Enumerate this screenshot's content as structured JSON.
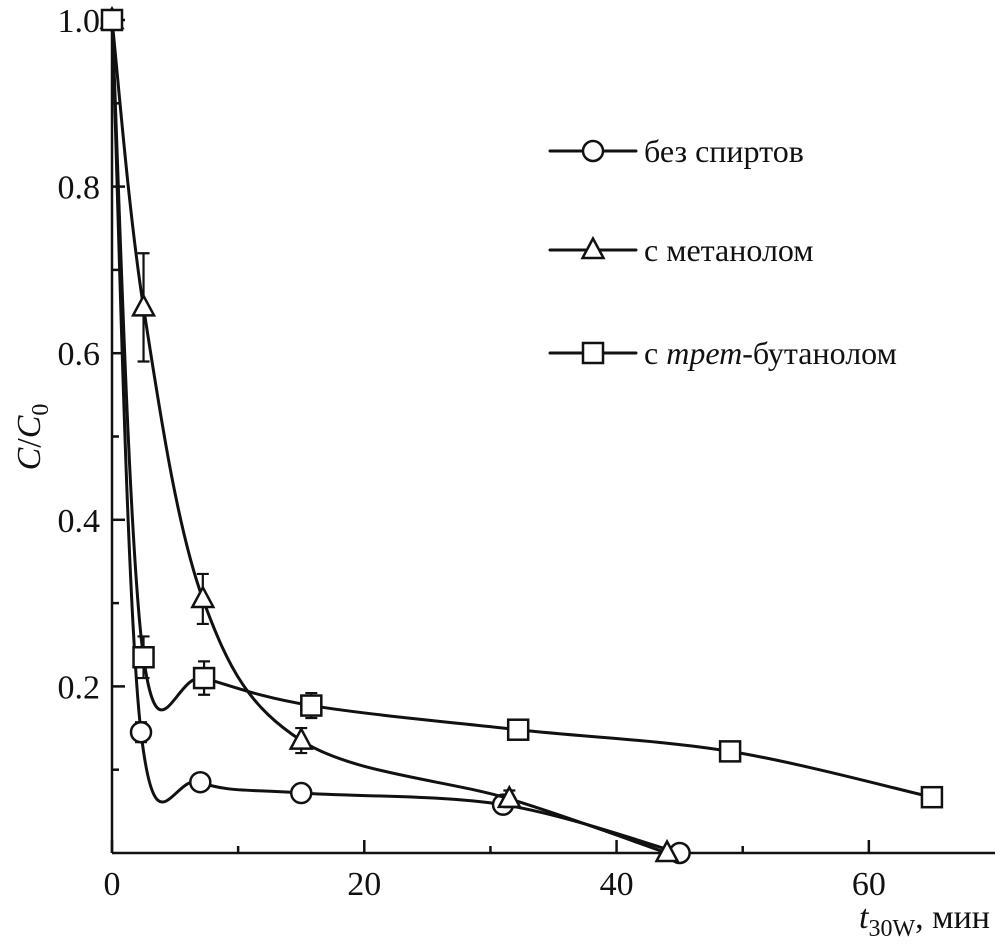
{
  "chart_data": {
    "type": "line",
    "xlabel": {
      "var": "t",
      "sub": "30W",
      "unit": ", мин"
    },
    "ylabel": {
      "var": "C",
      "sep": "/",
      "var2": "C",
      "sub": "0"
    },
    "xlim": [
      0,
      70
    ],
    "ylim": [
      0,
      1.0
    ],
    "x_ticks": [
      0,
      20,
      40,
      60
    ],
    "x_tick_labels": [
      "0",
      "20",
      "40",
      "60"
    ],
    "y_ticks": [
      0.2,
      0.4,
      0.6,
      0.8,
      1.0
    ],
    "y_tick_labels": [
      "0.2",
      "0.4",
      "0.6",
      "0.8",
      "1.0"
    ],
    "grid": false,
    "legend_position": "top-right",
    "series": [
      {
        "name": "без спиртов",
        "legend_parts": [
          {
            "text": "без спиртов",
            "italic": false
          }
        ],
        "marker": "circle",
        "x": [
          0,
          2.3,
          7,
          15,
          31,
          45
        ],
        "y": [
          1.0,
          0.145,
          0.085,
          0.072,
          0.058,
          0.0
        ],
        "yerr": [
          0,
          0.012,
          0.008,
          0.006,
          0.006,
          0
        ]
      },
      {
        "name": "с метанолом",
        "legend_parts": [
          {
            "text": "с метанолом",
            "italic": false
          }
        ],
        "marker": "triangle",
        "x": [
          0,
          2.5,
          7.2,
          15,
          31.5,
          44
        ],
        "y": [
          1.0,
          0.655,
          0.305,
          0.135,
          0.065,
          0.0
        ],
        "yerr": [
          0,
          0.065,
          0.03,
          0.015,
          0.01,
          0
        ]
      },
      {
        "name": "с трет-бутанолом",
        "legend_parts": [
          {
            "text": "с ",
            "italic": false
          },
          {
            "text": "трет",
            "italic": true
          },
          {
            "text": "-бутанолом",
            "italic": false
          }
        ],
        "marker": "square",
        "x": [
          0,
          2.5,
          7.3,
          15.8,
          32.2,
          49,
          65
        ],
        "y": [
          1.0,
          0.235,
          0.21,
          0.177,
          0.148,
          0.122,
          0.067
        ],
        "yerr": [
          0,
          0.025,
          0.02,
          0.015,
          0.01,
          0.01,
          0.01
        ]
      }
    ]
  }
}
